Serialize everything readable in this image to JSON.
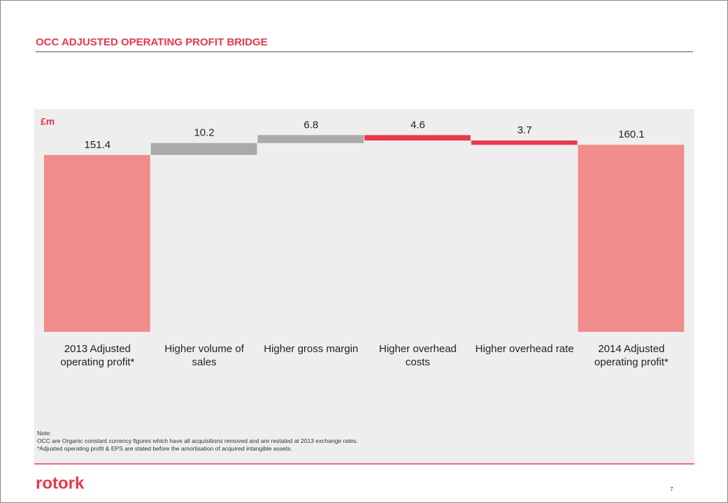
{
  "header": {
    "title": "OCC ADJUSTED OPERATING PROFIT BRIDGE"
  },
  "chart_data": {
    "type": "waterfall",
    "unit_label": "£m",
    "categories": [
      "2013 Adjusted operating profit*",
      "Higher volume of sales",
      "Higher gross margin",
      "Higher overhead costs",
      "Higher overhead rate",
      "2014 Adjusted operating profit*"
    ],
    "values": [
      151.4,
      10.2,
      6.8,
      -4.6,
      -3.7,
      160.1
    ],
    "value_labels": [
      "151.4",
      "10.2",
      "6.8",
      "4.6",
      "3.7",
      "160.1"
    ],
    "colors": [
      "#f08c8c",
      "#aaaaaa",
      "#aaaaaa",
      "#e8384a",
      "#e8384a",
      "#f08c8c"
    ],
    "ylim": [
      0,
      180
    ]
  },
  "notes": [
    "Note:",
    "OCC are Organic constant currency figures which have all acquisitions removed and are restated at 2013 exchange rates.",
    "*Adjusted operating profit & EPS are stated before the amortisation of acquired intangible assets."
  ],
  "footer": {
    "logo": "rotork",
    "page": "7"
  }
}
